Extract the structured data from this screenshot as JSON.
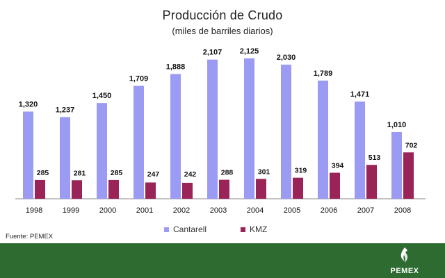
{
  "colors": {
    "cantarell": "#9b9bf4",
    "kmz": "#9a2457",
    "footer": "#2d6b31",
    "axis": "#888888"
  },
  "chart_data": {
    "type": "bar",
    "title": "Producción de Crudo",
    "subtitle": "(miles de barriles diarios)",
    "categories": [
      "1998",
      "1999",
      "2000",
      "2001",
      "2002",
      "2003",
      "2004",
      "2005",
      "2006",
      "2007",
      "2008"
    ],
    "series": [
      {
        "name": "Cantarell",
        "values": [
          1320,
          1237,
          1450,
          1709,
          1888,
          2107,
          2125,
          2030,
          1789,
          1471,
          1010
        ],
        "labels": [
          "1,320",
          "1,237",
          "1,450",
          "1,709",
          "1,888",
          "2,107",
          "2,125",
          "2,030",
          "1,789",
          "1,471",
          "1,010"
        ]
      },
      {
        "name": "KMZ",
        "values": [
          285,
          281,
          285,
          247,
          242,
          288,
          301,
          319,
          394,
          513,
          702
        ],
        "labels": [
          "285",
          "281",
          "285",
          "247",
          "242",
          "288",
          "301",
          "319",
          "394",
          "513",
          "702"
        ]
      }
    ],
    "ylim": [
      0,
      2125
    ],
    "grid": false,
    "legend_position": "bottom"
  },
  "source": "Fuente: PEMEX",
  "logo": {
    "text": "PEMEX",
    "icon": "pemex-logo-icon"
  }
}
